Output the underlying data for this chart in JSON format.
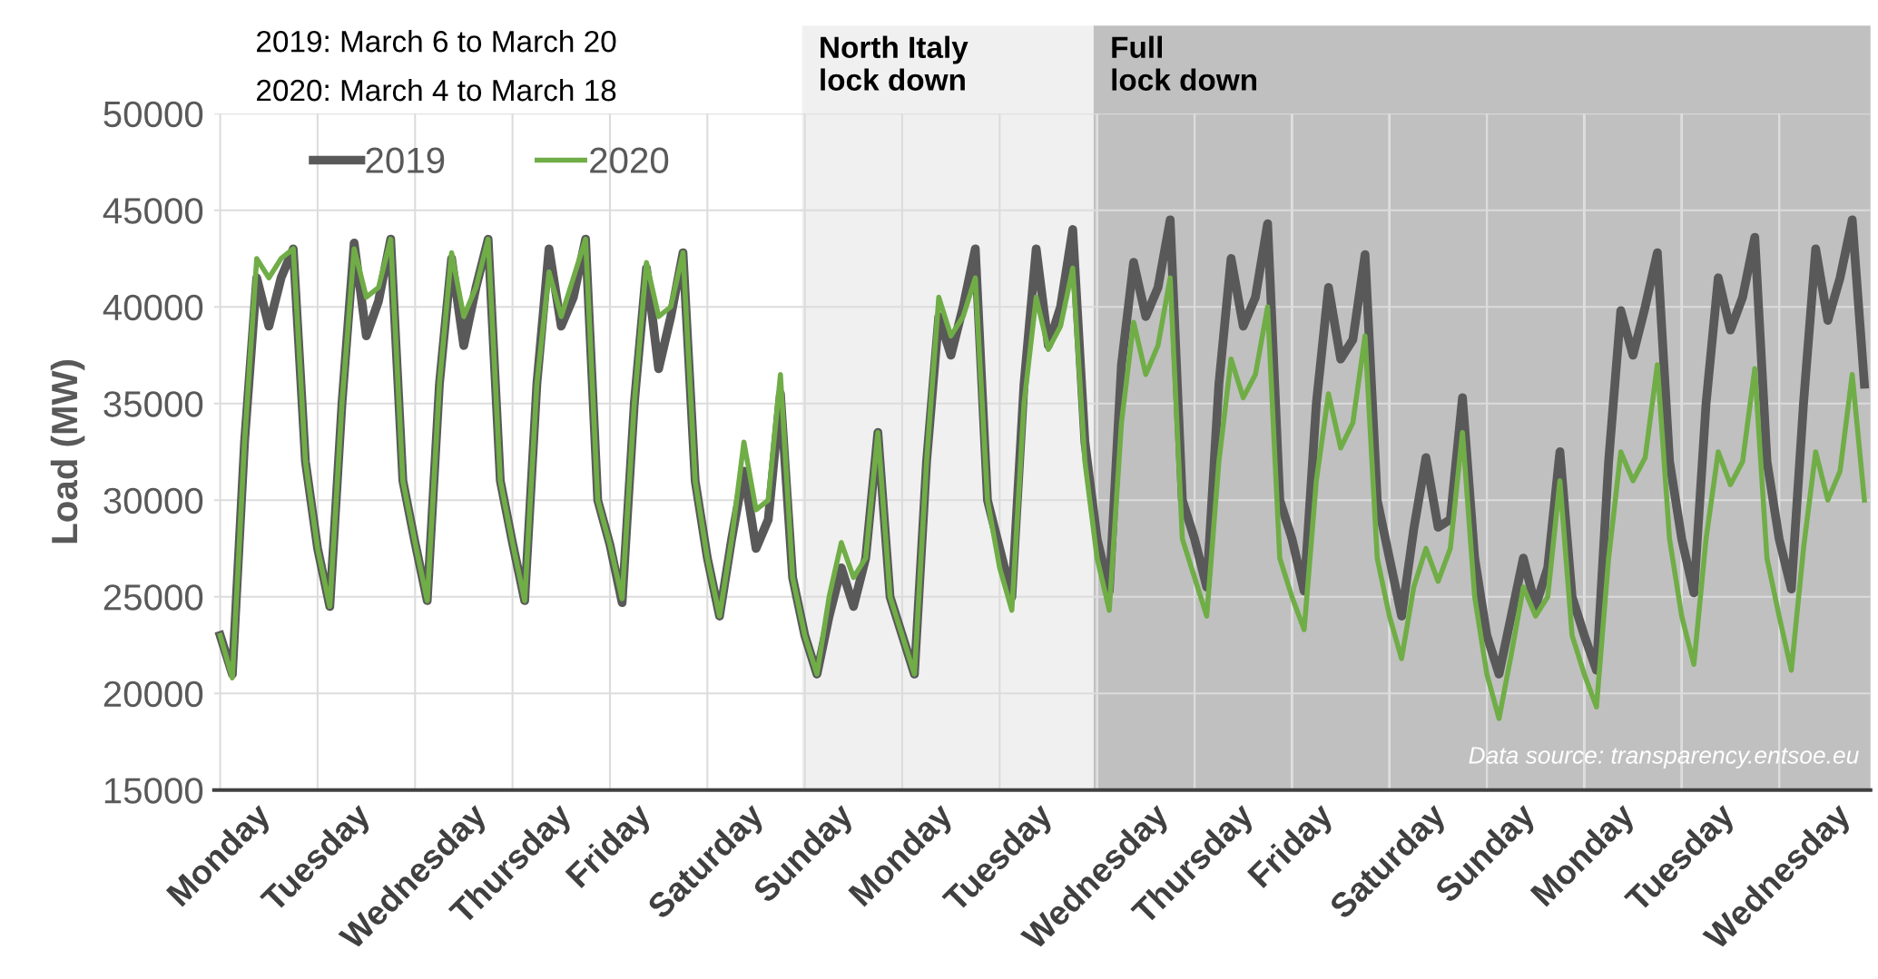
{
  "chart_data": {
    "type": "line",
    "ylabel": "Load (MW)",
    "annotations": [
      "2019: March 6 to March 20",
      "2020: March 4 to March 18",
      "North Italy\nlock down",
      "Full\nlock down",
      "Data source: transparency.entsoe.eu"
    ],
    "categories": [
      "Monday",
      null,
      null,
      null,
      null,
      null,
      null,
      null,
      "Tuesday",
      null,
      null,
      null,
      null,
      null,
      null,
      null,
      "Wednesday",
      null,
      null,
      null,
      null,
      null,
      null,
      null,
      "Thursday",
      null,
      null,
      null,
      null,
      null,
      null,
      null,
      "Friday",
      null,
      null,
      null,
      null,
      null,
      null,
      null,
      "Saturday",
      null,
      null,
      null,
      null,
      null,
      null,
      null,
      "Sunday",
      null,
      null,
      null,
      null,
      null,
      null,
      null,
      "Monday",
      null,
      null,
      null,
      null,
      null,
      null,
      null,
      "Tuesday",
      null,
      null,
      null,
      null,
      null,
      null,
      null,
      "Wednesday",
      null,
      null,
      null,
      null,
      null,
      null,
      null,
      "Thursday",
      null,
      null,
      null,
      null,
      null,
      null,
      null,
      "Friday",
      null,
      null,
      null,
      null,
      null,
      null,
      null,
      "Saturday",
      null,
      null,
      null,
      null,
      null,
      null,
      null,
      "Sunday",
      null,
      null,
      null,
      null,
      null,
      null,
      null,
      "Monday",
      null,
      null,
      null,
      null,
      null,
      null,
      null,
      "Tuesday",
      null,
      null,
      null,
      null,
      null,
      null,
      null,
      "Wednesday",
      null,
      null,
      null,
      null,
      null,
      null,
      null
    ],
    "ylim": [
      15000,
      50000
    ],
    "yticks": [
      15000,
      20000,
      25000,
      30000,
      35000,
      40000,
      45000,
      50000
    ],
    "grid": true,
    "legend": "top left",
    "line_style": "solid",
    "marker": "none",
    "series": [
      {
        "name": "2019",
        "color": "#595959",
        "values": [
          23000,
          21000,
          33000,
          41500,
          39000,
          41500,
          43000,
          32000,
          27500,
          24500,
          35000,
          43300,
          38500,
          40300,
          43500,
          31000,
          27800,
          24800,
          36000,
          42500,
          38000,
          41000,
          43500,
          31000,
          27800,
          24800,
          36000,
          43000,
          39000,
          40500,
          43500,
          30000,
          27700,
          24700,
          35000,
          42000,
          36800,
          39500,
          42800,
          31000,
          27000,
          24000,
          28000,
          31500,
          27500,
          29000,
          35500,
          26000,
          23000,
          21000,
          24000,
          26500,
          24500,
          27000,
          33500,
          25000,
          23000,
          21000,
          32000,
          39500,
          37500,
          40000,
          43000,
          30000,
          27500,
          25000,
          36000,
          43000,
          38000,
          40000,
          44000,
          33000,
          28000,
          25300,
          37000,
          42300,
          39500,
          41000,
          44500,
          30000,
          28000,
          25500,
          36000,
          42500,
          39000,
          40500,
          44300,
          30000,
          28000,
          25300,
          35000,
          41000,
          37300,
          38300,
          42700,
          30000,
          27000,
          24000,
          28500,
          32200,
          28600,
          29000,
          35300,
          27000,
          23000,
          21000,
          24000,
          27000,
          24500,
          26500,
          32500,
          25000,
          23000,
          21200,
          32000,
          39800,
          37500,
          40000,
          42800,
          32000,
          28000,
          25200,
          35000,
          41500,
          38800,
          40500,
          43600,
          32000,
          28000,
          25400,
          35000,
          43000,
          39300,
          41500,
          44500,
          36000
        ]
      },
      {
        "name": "2020",
        "color": "#70ad47",
        "values": [
          23000,
          20800,
          33000,
          42500,
          41500,
          42500,
          43000,
          32000,
          27500,
          24500,
          35000,
          43000,
          40500,
          41000,
          43500,
          31000,
          27800,
          24800,
          36000,
          42800,
          39500,
          41000,
          43500,
          31000,
          27800,
          24800,
          36000,
          41800,
          39500,
          41500,
          43500,
          30000,
          27700,
          24900,
          35000,
          42300,
          39500,
          40000,
          42800,
          31000,
          27000,
          24000,
          28000,
          33000,
          29500,
          30000,
          36500,
          26000,
          23000,
          21000,
          25000,
          27800,
          26000,
          27000,
          33500,
          25000,
          23000,
          21000,
          32000,
          40500,
          38500,
          39500,
          41500,
          30000,
          26500,
          24300,
          35000,
          40500,
          37800,
          39000,
          42000,
          32000,
          27000,
          24300,
          34000,
          39200,
          36500,
          38000,
          41500,
          28000,
          26000,
          24000,
          32000,
          37300,
          35300,
          36500,
          40000,
          27000,
          25000,
          23300,
          31000,
          35500,
          32700,
          34000,
          38500,
          27000,
          24000,
          21800,
          25500,
          27500,
          25800,
          27500,
          33500,
          25000,
          21000,
          18700,
          22000,
          25500,
          24000,
          25000,
          31000,
          23000,
          21000,
          19300,
          27000,
          32500,
          31000,
          32200,
          37000,
          28000,
          24000,
          21500,
          28000,
          32500,
          30800,
          32000,
          36800,
          27000,
          24000,
          21200,
          27500,
          32500,
          30000,
          31500,
          36500,
          30000
        ]
      }
    ]
  }
}
